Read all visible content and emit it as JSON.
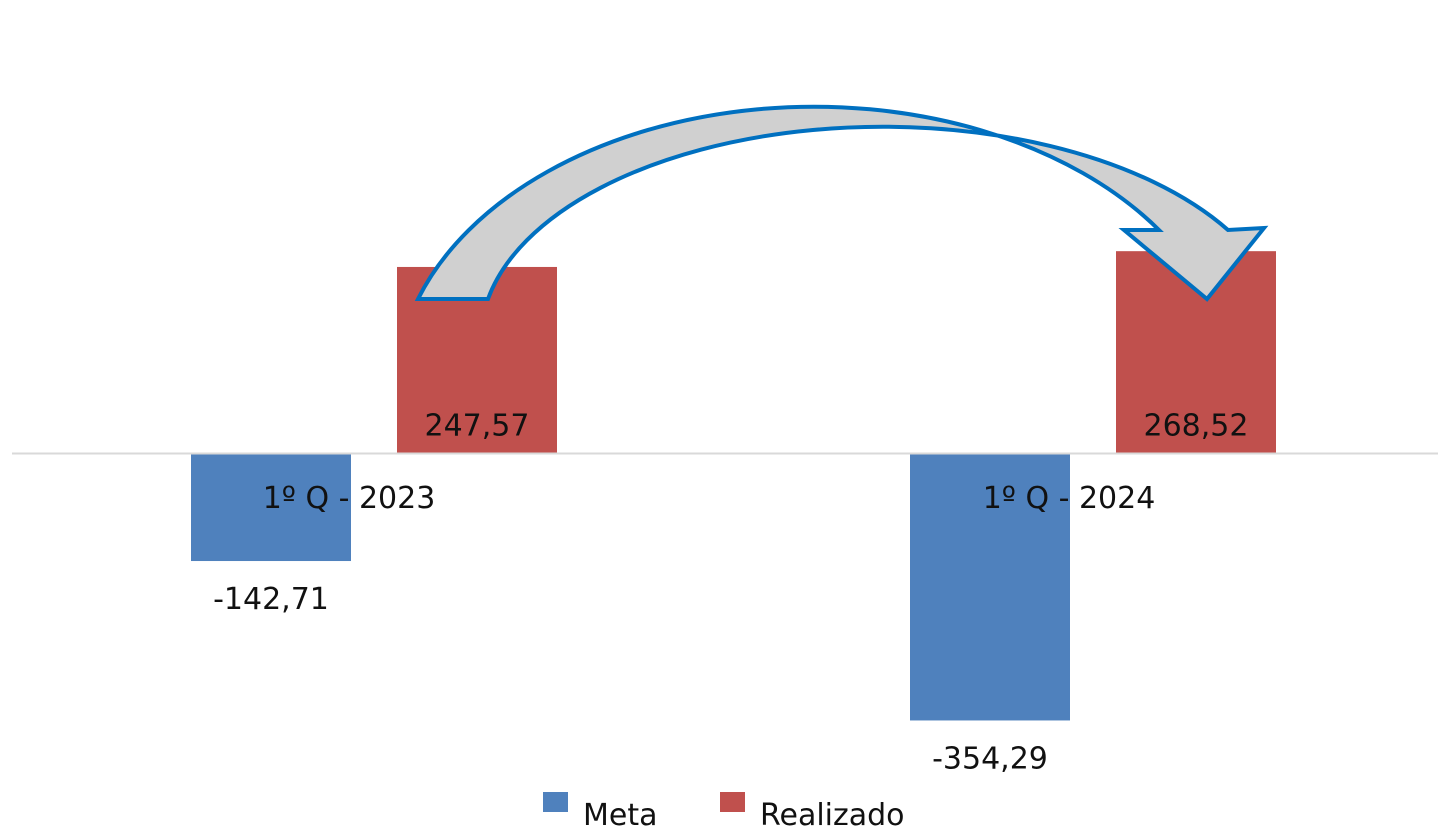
{
  "chart_data": {
    "type": "bar",
    "categories": [
      "1º Q - 2023",
      "1º Q - 2024"
    ],
    "series": [
      {
        "name": "Meta",
        "values": [
          -142.71,
          -354.29
        ],
        "labels": [
          "-142,71",
          "-354,29"
        ],
        "color": "#4F81BD"
      },
      {
        "name": "Realizado",
        "values": [
          247.57,
          268.52
        ],
        "labels": [
          "247,57",
          "268,52"
        ],
        "color": "#C0504D"
      }
    ],
    "title": "",
    "xlabel": "",
    "ylabel": "",
    "ylim": [
      -380,
      580
    ],
    "grid": false,
    "legend": "bottom",
    "annotation": {
      "type": "curved-arrow",
      "from": "1º Q - 2023 Realizado",
      "to": "1º Q - 2024 Realizado",
      "fill": "#D0D0D0",
      "stroke": "#0070C0"
    }
  }
}
